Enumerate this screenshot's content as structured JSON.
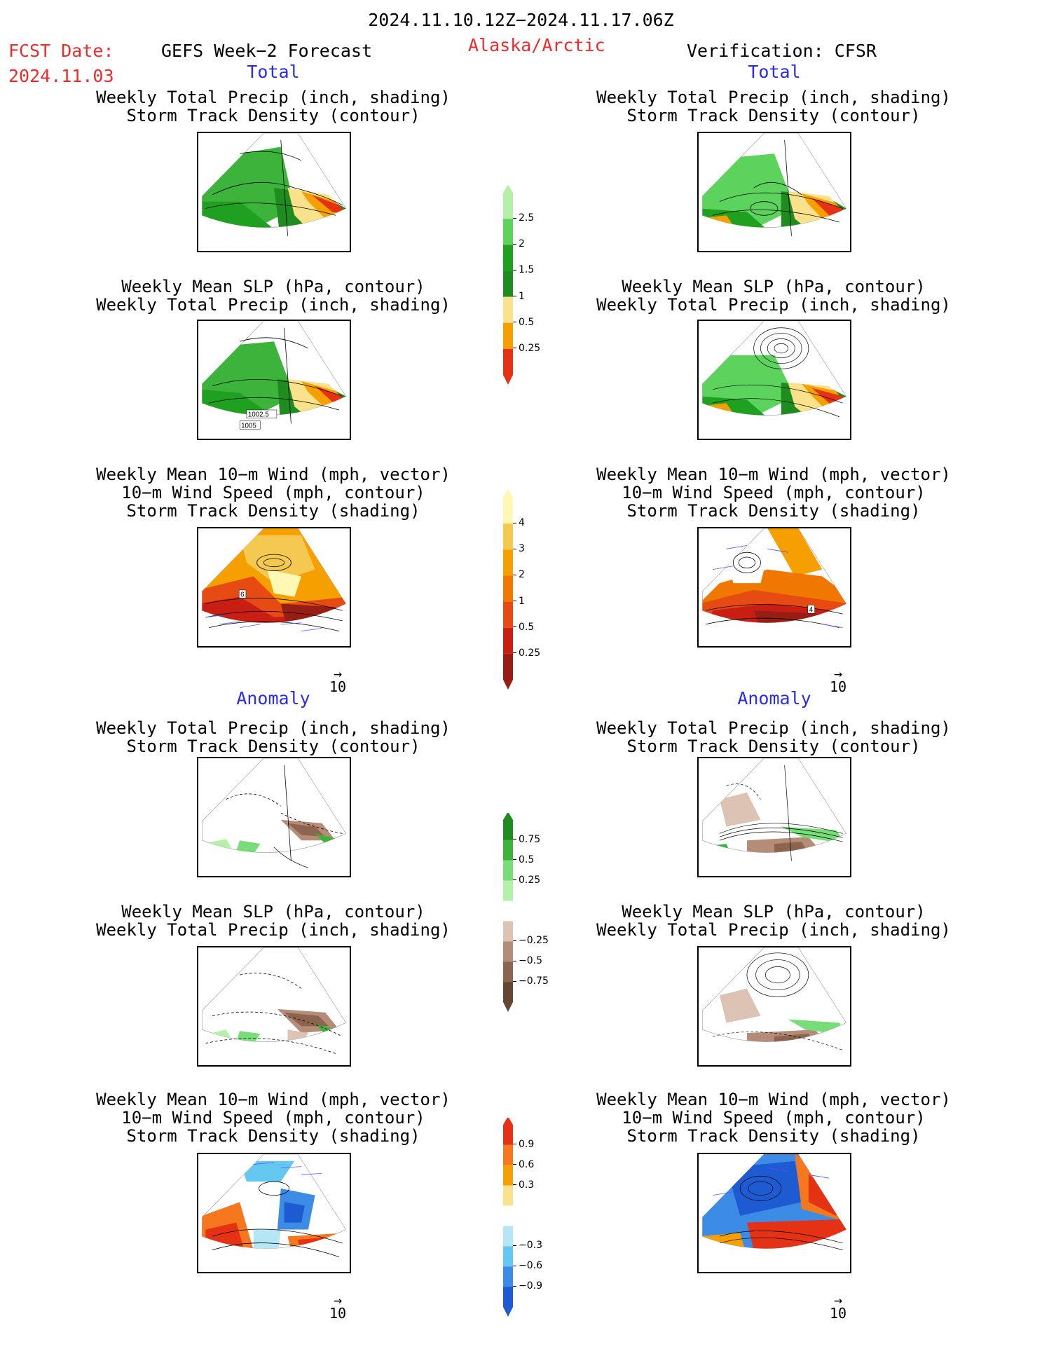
{
  "header": {
    "date_range": "2024.11.10.12Z−2024.11.17.06Z",
    "fcst_label": "FCST Date:",
    "fcst_date": "2024.11.03",
    "model": "GEFS Week−2 Forecast",
    "region": "Alaska/Arctic",
    "verification": "Verification: CFSR"
  },
  "sections": {
    "total_left": "Total",
    "total_right": "Total",
    "anomaly_left": "Anomaly",
    "anomaly_right": "Anomaly"
  },
  "titles": {
    "precip_storm": "Weekly Total Precip (inch, shading)\nStorm Track Density (contour)",
    "slp_precip": "Weekly Mean SLP (hPa, contour)\nWeekly Total Precip (inch, shading)",
    "wind": "Weekly Mean 10−m Wind (mph, vector)\n10−m Wind Speed (mph, contour)\nStorm Track Density (shading)"
  },
  "contour_labels": {
    "slp_1": "1002.5",
    "slp_2": "1005",
    "wind_left": "6",
    "wind_right": "4"
  },
  "vector_ref": "10",
  "colorbars": {
    "precip_total": {
      "colors": [
        "#b4f0a8",
        "#5cd35c",
        "#20a020",
        "#1e8c1e",
        "#fae28c",
        "#f5a000",
        "#e63214"
      ],
      "ticks": [
        "2.5",
        "2",
        "1.5",
        "1",
        "0.5",
        "0.25"
      ]
    },
    "storm_total": {
      "colors": [
        "#fff8b4",
        "#f5c850",
        "#f5a000",
        "#f07800",
        "#e64b14",
        "#c81e14",
        "#961e14"
      ],
      "ticks": [
        "4",
        "3",
        "2",
        "1",
        "0.5",
        "0.25"
      ]
    },
    "precip_anom": {
      "colors": [
        "#1e8c1e",
        "#3cb43c",
        "#78dc78",
        "#b4f0a8",
        "#ffffff",
        "#dcc3b4",
        "#b48c78",
        "#8c6450",
        "#644632"
      ],
      "ticks": [
        "0.75",
        "0.5",
        "0.25",
        "−0.25",
        "−0.5",
        "−0.75"
      ]
    },
    "storm_anom": {
      "colors": [
        "#e63214",
        "#f5781e",
        "#f5a000",
        "#fae28c",
        "#ffffff",
        "#b4e6f5",
        "#64c8f0",
        "#3c8ce6",
        "#1e5ad2"
      ],
      "ticks": [
        "0.9",
        "0.6",
        "0.3",
        "−0.3",
        "−0.6",
        "−0.9"
      ]
    }
  }
}
